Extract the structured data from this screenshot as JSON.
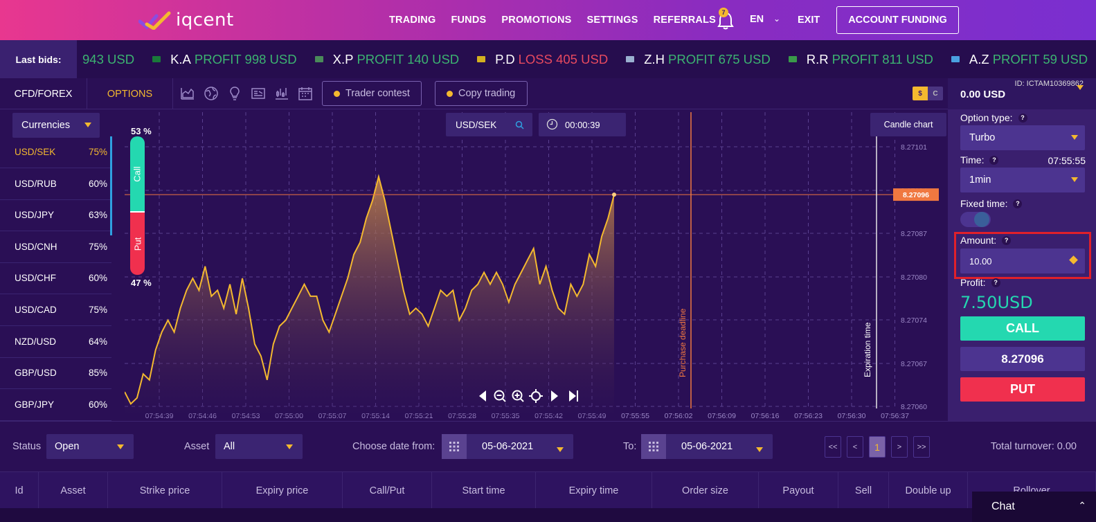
{
  "header": {
    "logo_text": "iqcent",
    "nav": [
      "TRADING",
      "FUNDS",
      "PROMOTIONS",
      "SETTINGS",
      "REFERRALS"
    ],
    "notification_count": "7",
    "language": "EN",
    "exit_label": "EXIT",
    "funding_label": "ACCOUNT FUNDING"
  },
  "ticker": {
    "label": "Last bids:",
    "items": [
      {
        "name": "",
        "type": "profit",
        "text": "943 USD",
        "flag": "none"
      },
      {
        "name": "K.A",
        "type": "profit",
        "text": "PROFIT 998 USD",
        "flag": "#1a7a3a"
      },
      {
        "name": "X.P",
        "type": "profit",
        "text": "PROFIT 140 USD",
        "flag": "#4a8a5a"
      },
      {
        "name": "P.D",
        "type": "loss",
        "text": "LOSS 405 USD",
        "flag": "#d4b020"
      },
      {
        "name": "Z.H",
        "type": "profit",
        "text": "PROFIT 675 USD",
        "flag": "#9ab0d0"
      },
      {
        "name": "R.R",
        "type": "profit",
        "text": "PROFIT 811 USD",
        "flag": "#3a9a4a"
      },
      {
        "name": "A.Z",
        "type": "profit",
        "text": "PROFIT 59 USD",
        "flag": "#4aa0e0"
      }
    ]
  },
  "toolbar": {
    "tab_forex": "CFD/FOREX",
    "tab_options": "OPTIONS",
    "trader_contest": "Trader contest",
    "copy_trading": "Copy trading",
    "currency_usd": "$",
    "currency_c": "C"
  },
  "assets": {
    "dropdown": "Currencies",
    "items": [
      {
        "name": "USD/SEK",
        "pct": "75%"
      },
      {
        "name": "USD/RUB",
        "pct": "60%"
      },
      {
        "name": "USD/JPY",
        "pct": "63%"
      },
      {
        "name": "USD/CNH",
        "pct": "75%"
      },
      {
        "name": "USD/CHF",
        "pct": "60%"
      },
      {
        "name": "USD/CAD",
        "pct": "75%"
      },
      {
        "name": "NZD/USD",
        "pct": "64%"
      },
      {
        "name": "GBP/USD",
        "pct": "85%"
      },
      {
        "name": "GBP/JPY",
        "pct": "60%"
      }
    ]
  },
  "chart": {
    "symbol": "USD/SEK",
    "timer": "00:00:39",
    "candle_label": "Candle chart",
    "call_pct": "53 %",
    "put_pct": "47 %",
    "call_label": "Call",
    "put_label": "Put",
    "purchase_deadline": "Purchase deadline",
    "expiration_time": "Expiration time",
    "current_price_tag": "8.27096"
  },
  "chart_data": {
    "type": "area",
    "x_ticks": [
      "07:54:39",
      "07:54:46",
      "07:54:53",
      "07:55:00",
      "07:55:07",
      "07:55:14",
      "07:55:21",
      "07:55:28",
      "07:55:35",
      "07:55:42",
      "07:55:49",
      "07:55:55",
      "07:56:02",
      "07:56:09",
      "07:56:16",
      "07:56:23",
      "07:56:30",
      "07:56:37"
    ],
    "y_ticks": [
      "8.27101",
      "8.27094",
      "8.27087",
      "8.27080",
      "8.27074",
      "8.27067",
      "8.27060"
    ],
    "ylim": [
      8.2706,
      8.27104
    ],
    "current_price": 8.27096,
    "values": [
      8.27063,
      8.27061,
      8.27062,
      8.27066,
      8.27065,
      8.2707,
      8.27073,
      8.27075,
      8.27073,
      8.27077,
      8.2708,
      8.27082,
      8.2708,
      8.27084,
      8.27079,
      8.2708,
      8.27077,
      8.27081,
      8.27076,
      8.27082,
      8.27077,
      8.27071,
      8.27069,
      8.27065,
      8.27071,
      8.27074,
      8.27075,
      8.27077,
      8.27079,
      8.27081,
      8.27079,
      8.27079,
      8.27075,
      8.27073,
      8.27076,
      8.27079,
      8.27082,
      8.27086,
      8.27088,
      8.27092,
      8.27095,
      8.27099,
      8.27095,
      8.2709,
      8.27085,
      8.2708,
      8.27076,
      8.27077,
      8.27076,
      8.27074,
      8.27077,
      8.2708,
      8.27079,
      8.2708,
      8.27075,
      8.27077,
      8.2708,
      8.27081,
      8.27083,
      8.27081,
      8.27083,
      8.27081,
      8.27078,
      8.27081,
      8.27083,
      8.27085,
      8.27087,
      8.27081,
      8.27084,
      8.2708,
      8.27077,
      8.27076,
      8.27081,
      8.27079,
      8.27081,
      8.27086,
      8.27084,
      8.27089,
      8.27092,
      8.27096
    ]
  },
  "panel": {
    "account_id": "ID: ICTAM10369862",
    "balance": "0.00 USD",
    "option_type_label": "Option type:",
    "option_type_value": "Turbo",
    "time_label": "Time:",
    "time_value": "07:55:55",
    "duration_value": "1min",
    "fixed_time_label": "Fixed time:",
    "amount_label": "Amount:",
    "amount_value": "10.00",
    "profit_label": "Profit:",
    "profit_value": "7.50USD",
    "call_label": "CALL",
    "price": "8.27096",
    "put_label": "PUT",
    "help": "?"
  },
  "filters": {
    "status_label": "Status",
    "status_value": "Open",
    "asset_label": "Asset",
    "asset_value": "All",
    "date_from_label": "Choose date from:",
    "date_from": "05-06-2021",
    "to_label": "To:",
    "date_to": "05-06-2021",
    "pager": [
      "<<",
      "<",
      "1",
      ">",
      ">>"
    ],
    "turnover": "Total turnover: 0.00"
  },
  "table": {
    "columns": [
      "Id",
      "Asset",
      "Strike price",
      "Expiry price",
      "Call/Put",
      "Start time",
      "Expiry time",
      "Order size",
      "Payout",
      "Sell",
      "Double up",
      "Rollover"
    ]
  },
  "chat": {
    "label": "Chat"
  },
  "colors": {
    "accent": "#f4b92f",
    "call": "#24d8b0",
    "put": "#f0304e",
    "line": "#f4b92f",
    "price_tag": "#f07840"
  }
}
